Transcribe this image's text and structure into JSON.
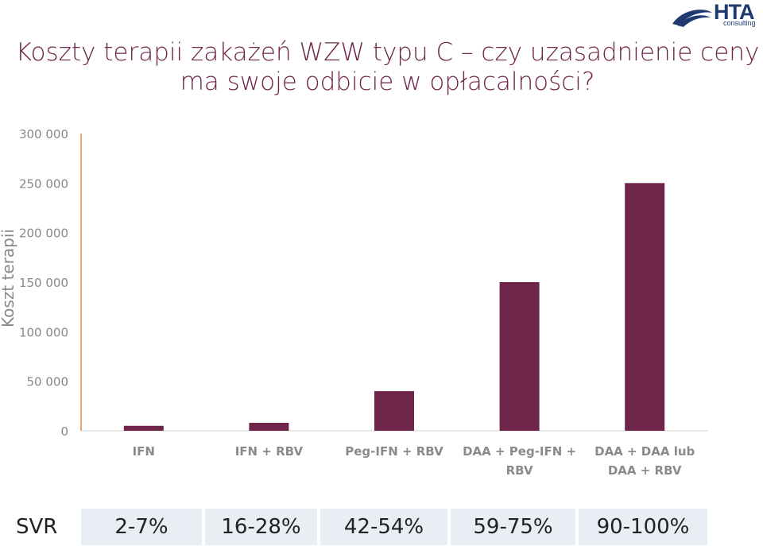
{
  "title": {
    "line1": "Koszty terapii zakażeń WZW typu C – czy uzasadnienie ceny",
    "line2": "ma swoje odbicie w opłacalności?"
  },
  "logo": {
    "brand": "HTA",
    "sub": "consulting"
  },
  "colors": {
    "bar": "#6f2449",
    "axis": "#e58a3c",
    "title": "#6f2449",
    "cell": "#e9edf4"
  },
  "chart_data": {
    "type": "bar",
    "title": "",
    "xlabel": "",
    "ylabel": "Koszt terapii",
    "ylim": [
      0,
      300000
    ],
    "yticks": [
      0,
      50000,
      100000,
      150000,
      200000,
      250000,
      300000
    ],
    "ytick_labels": [
      "0",
      "50 000",
      "100 000",
      "150 000",
      "200 000",
      "250 000",
      "300 000"
    ],
    "grid": false,
    "categories": [
      [
        "IFN"
      ],
      [
        "IFN + RBV"
      ],
      [
        "Peg-IFN + RBV"
      ],
      [
        "DAA + Peg-IFN +",
        "RBV"
      ],
      [
        "DAA + DAA lub",
        "DAA + RBV"
      ]
    ],
    "values": [
      5000,
      8000,
      40000,
      150000,
      250000
    ]
  },
  "svr": {
    "label": "SVR",
    "values": [
      "2-7%",
      "16-28%",
      "42-54%",
      "59-75%",
      "90-100%"
    ]
  }
}
